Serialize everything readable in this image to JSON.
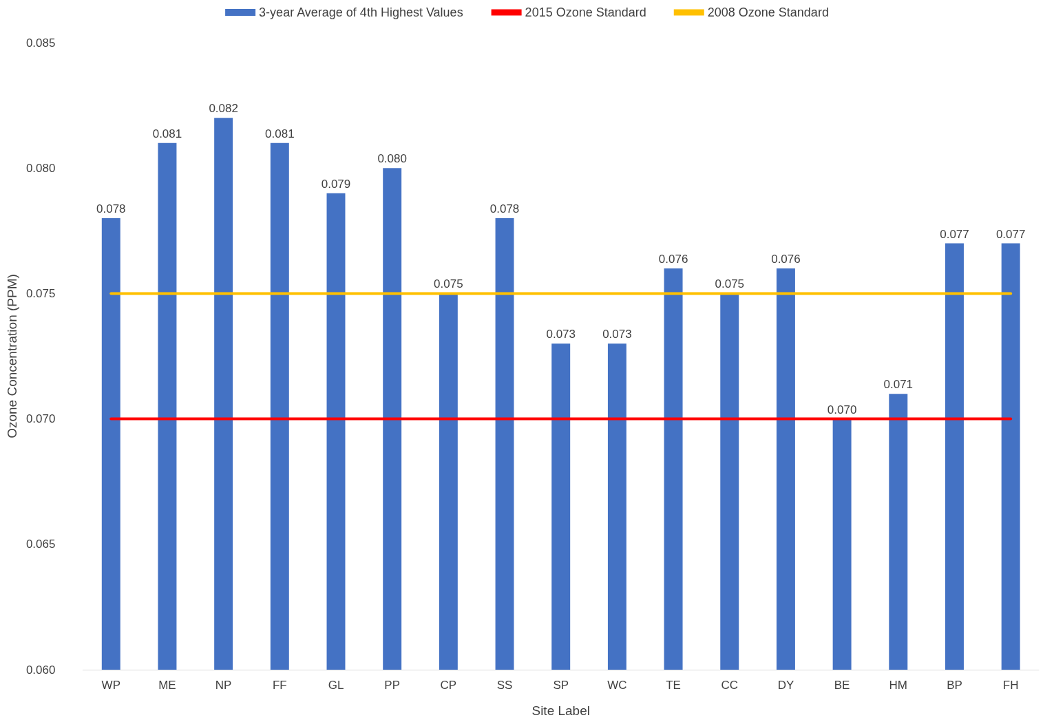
{
  "chart_data": {
    "type": "bar",
    "xlabel": "Site Label",
    "ylabel": "Ozone Concentration (PPM)",
    "categories": [
      "WP",
      "ME",
      "NP",
      "FF",
      "GL",
      "PP",
      "CP",
      "SS",
      "SP",
      "WC",
      "TE",
      "CC",
      "DY",
      "BE",
      "HM",
      "BP",
      "FH"
    ],
    "series": [
      {
        "name": "3-year Average of 4th Highest Values",
        "color": "#4472c4",
        "values": [
          0.078,
          0.081,
          0.082,
          0.081,
          0.079,
          0.08,
          0.075,
          0.078,
          0.073,
          0.073,
          0.076,
          0.075,
          0.076,
          0.07,
          0.071,
          0.077,
          0.077
        ],
        "value_labels": [
          "0.078",
          "0.081",
          "0.082",
          "0.081",
          "0.079",
          "0.080",
          "0.075",
          "0.078",
          "0.073",
          "0.073",
          "0.076",
          "0.075",
          "0.076",
          "0.070",
          "0.071",
          "0.077",
          "0.077"
        ]
      },
      {
        "name": "2015 Ozone Standard",
        "type": "line",
        "color": "#ff0000",
        "values": [
          0.07,
          0.07,
          0.07,
          0.07,
          0.07,
          0.07,
          0.07,
          0.07,
          0.07,
          0.07,
          0.07,
          0.07,
          0.07,
          0.07,
          0.07,
          0.07,
          0.07
        ]
      },
      {
        "name": "2008 Ozone Standard",
        "type": "line",
        "color": "#ffc000",
        "values": [
          0.075,
          0.075,
          0.075,
          0.075,
          0.075,
          0.075,
          0.075,
          0.075,
          0.075,
          0.075,
          0.075,
          0.075,
          0.075,
          0.075,
          0.075,
          0.075,
          0.075
        ]
      }
    ],
    "ylim": [
      0.06,
      0.085
    ],
    "yticks": [
      {
        "value": 0.06,
        "label": "0.060"
      },
      {
        "value": 0.065,
        "label": "0.065"
      },
      {
        "value": 0.07,
        "label": "0.070"
      },
      {
        "value": 0.075,
        "label": "0.075"
      },
      {
        "value": 0.08,
        "label": "0.080"
      },
      {
        "value": 0.085,
        "label": "0.085"
      }
    ],
    "grid": false,
    "legend": "top",
    "marker": "none",
    "line_style": "solid"
  }
}
